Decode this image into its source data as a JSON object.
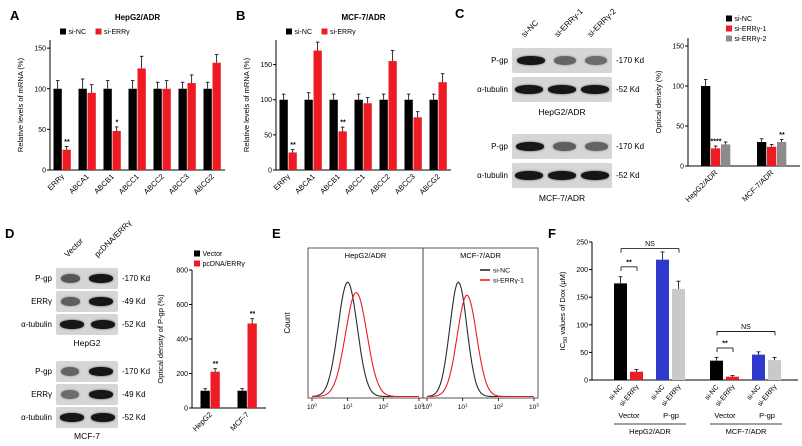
{
  "figure": {
    "panel_labels": {
      "A": "A",
      "B": "B",
      "C": "C",
      "D": "D",
      "E": "E",
      "F": "F"
    }
  },
  "colors": {
    "black": "#000000",
    "red": "#ed1c24",
    "gray": "#8c8c8c",
    "light_gray": "#c9c9c9",
    "blue": "#2f3acc"
  },
  "chart_data": [
    {
      "id": "panel-a",
      "type": "bar",
      "title": "HepG2/ADR",
      "ylabel": "Relative levels of mRNA (%)",
      "ylim": [
        0,
        160
      ],
      "yticks": [
        0,
        50,
        100,
        150
      ],
      "categories": [
        "ERRγ",
        "ABCA1",
        "ABCB1",
        "ABCC1",
        "ABCC2",
        "ABCC3",
        "ABCG2"
      ],
      "series": [
        {
          "name": "si-NC",
          "color": "#000000",
          "values": [
            100,
            100,
            100,
            100,
            100,
            100,
            100
          ],
          "errors": [
            10,
            12,
            10,
            10,
            8,
            8,
            8
          ]
        },
        {
          "name": "si-ERRγ",
          "color": "#ed1c24",
          "values": [
            25,
            95,
            48,
            125,
            100,
            107,
            132
          ],
          "errors": [
            4,
            10,
            5,
            15,
            10,
            10,
            10
          ]
        }
      ],
      "sig": [
        {
          "cat": 0,
          "series": 1,
          "text": "**"
        },
        {
          "cat": 2,
          "series": 1,
          "text": "*"
        }
      ]
    },
    {
      "id": "panel-b",
      "type": "bar",
      "title": "MCF-7/ADR",
      "ylabel": "Relative levels of mRNA (%)",
      "ylim": [
        0,
        185
      ],
      "yticks": [
        0,
        50,
        100,
        150
      ],
      "categories": [
        "ERRγ",
        "ABCA1",
        "ABCB1",
        "ABCC1",
        "ABCC2",
        "ABCC3",
        "ABCG2"
      ],
      "series": [
        {
          "name": "si-NC",
          "color": "#000000",
          "values": [
            100,
            100,
            100,
            100,
            100,
            100,
            100
          ],
          "errors": [
            8,
            10,
            8,
            8,
            8,
            8,
            8
          ]
        },
        {
          "name": "si-ERRγ",
          "color": "#ed1c24",
          "values": [
            25,
            170,
            55,
            95,
            155,
            75,
            125
          ],
          "errors": [
            4,
            12,
            6,
            8,
            15,
            8,
            12
          ]
        }
      ],
      "sig": [
        {
          "cat": 0,
          "series": 1,
          "text": "**"
        },
        {
          "cat": 2,
          "series": 1,
          "text": "**"
        }
      ]
    },
    {
      "id": "panel-c-densitometry",
      "type": "bar",
      "ylabel": "Optical density (%)",
      "ylim": [
        0,
        160
      ],
      "yticks": [
        0,
        50,
        100,
        150
      ],
      "categories": [
        "HepG2/ADR",
        "MCF-7/ADR"
      ],
      "series": [
        {
          "name": "si-NC",
          "color": "#000000",
          "values": [
            100,
            30
          ],
          "errors": [
            8,
            4
          ]
        },
        {
          "name": "si-ERRγ-1",
          "color": "#ed1c24",
          "values": [
            22,
            24
          ],
          "errors": [
            3,
            3
          ]
        },
        {
          "name": "si-ERRγ-2",
          "color": "#8c8c8c",
          "values": [
            27,
            30
          ],
          "errors": [
            3,
            3
          ]
        }
      ],
      "sig": [
        {
          "cat": 0,
          "series": 1,
          "text": "****"
        },
        {
          "cat": 1,
          "series": 2,
          "text": "**"
        }
      ]
    },
    {
      "id": "panel-d-densitometry",
      "type": "bar",
      "ylabel": "Optical density of P-gp (%)",
      "ylim": [
        0,
        800
      ],
      "yticks": [
        0,
        200,
        400,
        600,
        800
      ],
      "categories": [
        "HepG2",
        "MCF-7"
      ],
      "series": [
        {
          "name": "Vector",
          "color": "#000000",
          "values": [
            100,
            100
          ],
          "errors": [
            12,
            12
          ]
        },
        {
          "name": "pcDNA/ERRγ",
          "color": "#ed1c24",
          "values": [
            210,
            490
          ],
          "errors": [
            18,
            28
          ]
        }
      ],
      "sig": [
        {
          "cat": 0,
          "series": 1,
          "text": "**"
        },
        {
          "cat": 1,
          "series": 1,
          "text": "**"
        }
      ]
    },
    {
      "id": "panel-e-flow",
      "type": "flow-histogram",
      "ylabel": "Count",
      "xtick_exponents": [
        0,
        1,
        2,
        3
      ],
      "panels": [
        {
          "title": "HepG2/ADR",
          "curves": [
            {
              "name": "si-NC",
              "color": "#2b2b2b",
              "center": 1.0,
              "sigma": 0.27,
              "height": 0.88
            },
            {
              "name": "si-ERRγ-1",
              "color": "#ed1c24",
              "center": 1.24,
              "sigma": 0.3,
              "height": 0.8
            }
          ]
        },
        {
          "title": "MCF-7/ADR",
          "curves": [
            {
              "name": "si-NC",
              "color": "#2b2b2b",
              "center": 0.88,
              "sigma": 0.24,
              "height": 0.88
            },
            {
              "name": "si-ERRγ-1",
              "color": "#ed1c24",
              "center": 1.12,
              "sigma": 0.27,
              "height": 0.78
            }
          ]
        }
      ],
      "legend": [
        {
          "name": "si-NC",
          "color": "#2b2b2b"
        },
        {
          "name": "si-ERRγ-1",
          "color": "#ed1c24"
        }
      ]
    },
    {
      "id": "panel-f-ic50",
      "type": "grouped-bar",
      "ylabel_parts": [
        "IC",
        "50",
        " values of Dox (μM)"
      ],
      "ylim": [
        0,
        250
      ],
      "yticks": [
        0,
        50,
        100,
        150,
        200,
        250
      ],
      "bars": [
        {
          "label": "si-NC",
          "color": "#000000",
          "value": 175,
          "err": 12
        },
        {
          "label": "si-ERRγ",
          "color": "#ed1c24",
          "value": 15,
          "err": 4
        },
        {
          "label": "si-NC",
          "color": "#2f3acc",
          "value": 218,
          "err": 14
        },
        {
          "label": "si-ERRγ",
          "color": "#c9c9c9",
          "value": 165,
          "err": 14
        },
        {
          "label": "si-NC",
          "color": "#000000",
          "value": 35,
          "err": 6
        },
        {
          "label": "si-ERRγ",
          "color": "#ed1c24",
          "value": 6,
          "err": 2
        },
        {
          "label": "si-NC",
          "color": "#2f3acc",
          "value": 46,
          "err": 5
        },
        {
          "label": "si-ERRγ",
          "color": "#c9c9c9",
          "value": 36,
          "err": 5
        }
      ],
      "construct_labels": [
        "Vector",
        "P-gp",
        "Vector",
        "P-gp"
      ],
      "cell_labels": [
        "HepG2/ADR",
        "MCF-7/ADR"
      ],
      "brackets": [
        {
          "from": 0,
          "to": 1,
          "text": "**",
          "at": 205
        },
        {
          "from": 0,
          "to": 3,
          "text": "NS",
          "at": 238
        },
        {
          "from": 4,
          "to": 5,
          "text": "**",
          "at": 58
        },
        {
          "from": 4,
          "to": 7,
          "text": "NS",
          "at": 88
        }
      ]
    }
  ],
  "blots": {
    "C": {
      "lane_labels": [
        "si-NC",
        "si-ERRγ-1",
        "si-ERRγ-2"
      ],
      "groups": [
        {
          "cell": "HepG2/ADR",
          "rows": [
            {
              "protein": "P-gp",
              "marker": "-170 Kd",
              "bands": [
                1.0,
                0.45,
                0.4
              ]
            },
            {
              "protein": "α-tubulin",
              "marker": "-52 Kd",
              "bands": [
                1.0,
                1.0,
                1.0
              ]
            }
          ]
        },
        {
          "cell": "MCF-7/ADR",
          "rows": [
            {
              "protein": "P-gp",
              "marker": "-170 Kd",
              "bands": [
                1.0,
                0.5,
                0.45
              ]
            },
            {
              "protein": "α-tubulin",
              "marker": "-52 Kd",
              "bands": [
                1.0,
                1.0,
                1.0
              ]
            }
          ]
        }
      ]
    },
    "D": {
      "lane_labels": [
        "Vector",
        "pcDNA/ERRγ"
      ],
      "groups": [
        {
          "cell": "HepG2",
          "rows": [
            {
              "protein": "P-gp",
              "marker": "-170 Kd",
              "bands": [
                0.55,
                1.0
              ]
            },
            {
              "protein": "ERRγ",
              "marker": "-49 Kd",
              "bands": [
                0.5,
                1.0
              ]
            },
            {
              "protein": "α-tubulin",
              "marker": "-52 Kd",
              "bands": [
                1.0,
                1.0
              ]
            }
          ]
        },
        {
          "cell": "MCF-7",
          "rows": [
            {
              "protein": "P-gp",
              "marker": "-170 Kd",
              "bands": [
                0.45,
                1.0
              ]
            },
            {
              "protein": "ERRγ",
              "marker": "-49 Kd",
              "bands": [
                0.4,
                1.0
              ]
            },
            {
              "protein": "α-tubulin",
              "marker": "-52 Kd",
              "bands": [
                1.0,
                1.0
              ]
            }
          ]
        }
      ]
    }
  }
}
